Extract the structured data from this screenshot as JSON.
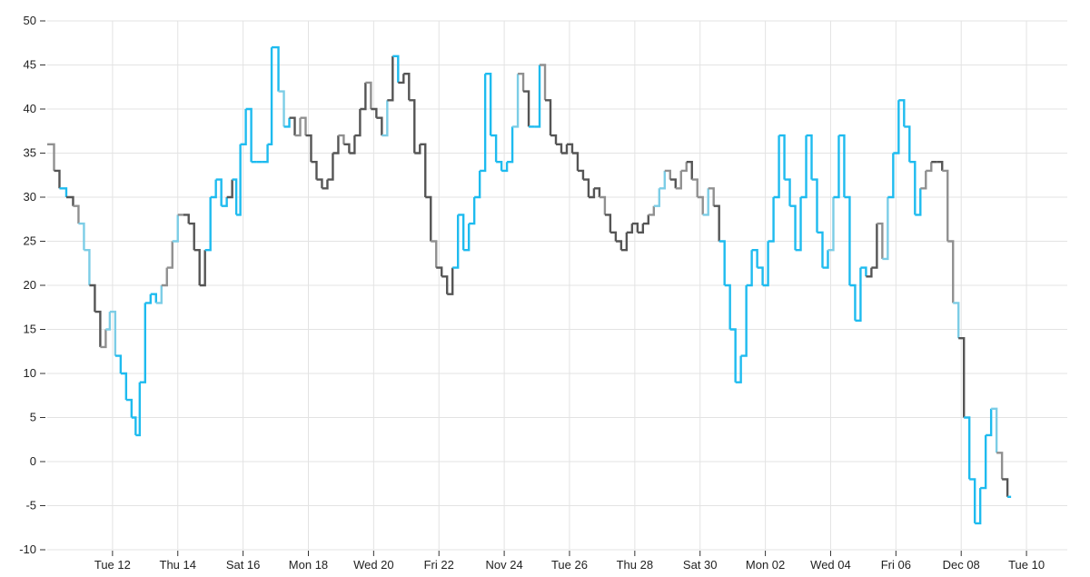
{
  "chart_data": {
    "type": "line",
    "title": "",
    "xlabel": "",
    "ylabel": "",
    "ylim": [
      -10,
      50
    ],
    "grid": true,
    "legend": "none",
    "y_ticks": [
      -10,
      -5,
      0,
      5,
      10,
      15,
      20,
      25,
      30,
      35,
      40,
      45,
      50
    ],
    "x_ticks": [
      {
        "value": "2024-11-12",
        "label": "Tue 12"
      },
      {
        "value": "2024-11-14",
        "label": "Thu 14"
      },
      {
        "value": "2024-11-16",
        "label": "Sat 16"
      },
      {
        "value": "2024-11-18",
        "label": "Mon 18"
      },
      {
        "value": "2024-11-20",
        "label": "Wed 20"
      },
      {
        "value": "2024-11-22",
        "label": "Fri 22"
      },
      {
        "value": "2024-11-24",
        "label": "Nov 24"
      },
      {
        "value": "2024-11-26",
        "label": "Tue 26"
      },
      {
        "value": "2024-11-28",
        "label": "Thu 28"
      },
      {
        "value": "2024-11-30",
        "label": "Sat 30"
      },
      {
        "value": "2024-12-02",
        "label": "Mon 02"
      },
      {
        "value": "2024-12-04",
        "label": "Wed 04"
      },
      {
        "value": "2024-12-06",
        "label": "Fri 06"
      },
      {
        "value": "2024-12-08",
        "label": "Dec 08"
      },
      {
        "value": "2024-12-10",
        "label": "Tue 10"
      }
    ],
    "x_range": [
      "2024-11-10T00:00",
      "2024-12-11T06:00"
    ],
    "colors": {
      "bright": "#1ebbef",
      "light": "#7ccde6",
      "gray": "#909090",
      "dark": "#555555",
      "grid": "#e3e3e3",
      "axis": "#333333"
    },
    "series": [
      {
        "points": [
          [
            "2024-11-10T00:00",
            36,
            "gray"
          ],
          [
            "2024-11-10T05:00",
            33,
            "dark"
          ],
          [
            "2024-11-10T09:00",
            31,
            "bright"
          ],
          [
            "2024-11-10T14:00",
            30,
            "dark"
          ],
          [
            "2024-11-10T19:00",
            29,
            "gray"
          ],
          [
            "2024-11-10T23:00",
            27,
            "light"
          ],
          [
            "2024-11-11T03:00",
            24,
            "light"
          ],
          [
            "2024-11-11T07:00",
            20,
            "dark"
          ],
          [
            "2024-11-11T11:00",
            17,
            "dark"
          ],
          [
            "2024-11-11T15:00",
            13,
            "gray"
          ],
          [
            "2024-11-11T19:00",
            15,
            "light"
          ],
          [
            "2024-11-11T22:00",
            17,
            "light"
          ],
          [
            "2024-11-12T02:00",
            12,
            "bright"
          ],
          [
            "2024-11-12T06:00",
            10,
            "bright"
          ],
          [
            "2024-11-12T10:00",
            7,
            "bright"
          ],
          [
            "2024-11-12T14:00",
            5,
            "bright"
          ],
          [
            "2024-11-12T17:00",
            3,
            "bright"
          ],
          [
            "2024-11-12T20:00",
            9,
            "bright"
          ],
          [
            "2024-11-13T00:00",
            18,
            "bright"
          ],
          [
            "2024-11-13T04:00",
            19,
            "bright"
          ],
          [
            "2024-11-13T08:00",
            18,
            "light"
          ],
          [
            "2024-11-13T12:00",
            20,
            "gray"
          ],
          [
            "2024-11-13T16:00",
            22,
            "gray"
          ],
          [
            "2024-11-13T20:00",
            25,
            "light"
          ],
          [
            "2024-11-14T00:00",
            28,
            "gray"
          ],
          [
            "2024-11-14T04:00",
            28,
            "dark"
          ],
          [
            "2024-11-14T08:00",
            27,
            "dark"
          ],
          [
            "2024-11-14T12:00",
            24,
            "dark"
          ],
          [
            "2024-11-14T16:00",
            20,
            "dark"
          ],
          [
            "2024-11-14T20:00",
            24,
            "bright"
          ],
          [
            "2024-11-15T00:00",
            30,
            "bright"
          ],
          [
            "2024-11-15T04:00",
            32,
            "bright"
          ],
          [
            "2024-11-15T08:00",
            29,
            "bright"
          ],
          [
            "2024-11-15T12:00",
            30,
            "dark"
          ],
          [
            "2024-11-15T16:00",
            32,
            "bright"
          ],
          [
            "2024-11-15T19:00",
            28,
            "bright"
          ],
          [
            "2024-11-15T22:00",
            36,
            "bright"
          ],
          [
            "2024-11-16T02:00",
            40,
            "bright"
          ],
          [
            "2024-11-16T06:00",
            34,
            "bright"
          ],
          [
            "2024-11-16T10:00",
            34,
            "bright"
          ],
          [
            "2024-11-16T14:00",
            34,
            "bright"
          ],
          [
            "2024-11-16T18:00",
            36,
            "bright"
          ],
          [
            "2024-11-16T21:00",
            47,
            "bright"
          ],
          [
            "2024-11-17T02:00",
            42,
            "light"
          ],
          [
            "2024-11-17T06:00",
            38,
            "bright"
          ],
          [
            "2024-11-17T10:00",
            39,
            "dark"
          ],
          [
            "2024-11-17T14:00",
            37,
            "gray"
          ],
          [
            "2024-11-17T18:00",
            39,
            "gray"
          ],
          [
            "2024-11-17T22:00",
            37,
            "dark"
          ],
          [
            "2024-11-18T02:00",
            34,
            "dark"
          ],
          [
            "2024-11-18T06:00",
            32,
            "dark"
          ],
          [
            "2024-11-18T10:00",
            31,
            "dark"
          ],
          [
            "2024-11-18T14:00",
            32,
            "dark"
          ],
          [
            "2024-11-18T18:00",
            35,
            "dark"
          ],
          [
            "2024-11-18T22:00",
            37,
            "gray"
          ],
          [
            "2024-11-19T02:00",
            36,
            "dark"
          ],
          [
            "2024-11-19T06:00",
            35,
            "dark"
          ],
          [
            "2024-11-19T10:00",
            37,
            "dark"
          ],
          [
            "2024-11-19T14:00",
            40,
            "dark"
          ],
          [
            "2024-11-19T18:00",
            43,
            "gray"
          ],
          [
            "2024-11-19T22:00",
            40,
            "dark"
          ],
          [
            "2024-11-20T02:00",
            39,
            "dark"
          ],
          [
            "2024-11-20T06:00",
            37,
            "light"
          ],
          [
            "2024-11-20T10:00",
            41,
            "dark"
          ],
          [
            "2024-11-20T14:00",
            46,
            "bright"
          ],
          [
            "2024-11-20T18:00",
            43,
            "dark"
          ],
          [
            "2024-11-20T22:00",
            44,
            "dark"
          ],
          [
            "2024-11-21T02:00",
            41,
            "dark"
          ],
          [
            "2024-11-21T06:00",
            35,
            "dark"
          ],
          [
            "2024-11-21T10:00",
            36,
            "dark"
          ],
          [
            "2024-11-21T14:00",
            30,
            "dark"
          ],
          [
            "2024-11-21T18:00",
            25,
            "gray"
          ],
          [
            "2024-11-21T22:00",
            22,
            "dark"
          ],
          [
            "2024-11-22T02:00",
            21,
            "dark"
          ],
          [
            "2024-11-22T06:00",
            19,
            "dark"
          ],
          [
            "2024-11-22T10:00",
            22,
            "bright"
          ],
          [
            "2024-11-22T14:00",
            28,
            "bright"
          ],
          [
            "2024-11-22T18:00",
            24,
            "bright"
          ],
          [
            "2024-11-22T22:00",
            27,
            "bright"
          ],
          [
            "2024-11-23T02:00",
            30,
            "bright"
          ],
          [
            "2024-11-23T06:00",
            33,
            "bright"
          ],
          [
            "2024-11-23T10:00",
            44,
            "bright"
          ],
          [
            "2024-11-23T14:00",
            37,
            "bright"
          ],
          [
            "2024-11-23T18:00",
            34,
            "bright"
          ],
          [
            "2024-11-23T22:00",
            33,
            "bright"
          ],
          [
            "2024-11-24T02:00",
            34,
            "bright"
          ],
          [
            "2024-11-24T06:00",
            38,
            "light"
          ],
          [
            "2024-11-24T10:00",
            44,
            "gray"
          ],
          [
            "2024-11-24T14:00",
            42,
            "dark"
          ],
          [
            "2024-11-24T18:00",
            38,
            "bright"
          ],
          [
            "2024-11-24T22:00",
            38,
            "bright"
          ],
          [
            "2024-11-25T02:00",
            45,
            "gray"
          ],
          [
            "2024-11-25T06:00",
            41,
            "dark"
          ],
          [
            "2024-11-25T10:00",
            37,
            "dark"
          ],
          [
            "2024-11-25T14:00",
            36,
            "dark"
          ],
          [
            "2024-11-25T18:00",
            35,
            "dark"
          ],
          [
            "2024-11-25T22:00",
            36,
            "dark"
          ],
          [
            "2024-11-26T02:00",
            35,
            "dark"
          ],
          [
            "2024-11-26T06:00",
            33,
            "dark"
          ],
          [
            "2024-11-26T10:00",
            32,
            "dark"
          ],
          [
            "2024-11-26T14:00",
            30,
            "dark"
          ],
          [
            "2024-11-26T18:00",
            31,
            "dark"
          ],
          [
            "2024-11-26T22:00",
            30,
            "gray"
          ],
          [
            "2024-11-27T02:00",
            28,
            "dark"
          ],
          [
            "2024-11-27T06:00",
            26,
            "dark"
          ],
          [
            "2024-11-27T10:00",
            25,
            "dark"
          ],
          [
            "2024-11-27T14:00",
            24,
            "dark"
          ],
          [
            "2024-11-27T18:00",
            26,
            "dark"
          ],
          [
            "2024-11-27T22:00",
            27,
            "dark"
          ],
          [
            "2024-11-28T02:00",
            26,
            "dark"
          ],
          [
            "2024-11-28T06:00",
            27,
            "dark"
          ],
          [
            "2024-11-28T10:00",
            28,
            "gray"
          ],
          [
            "2024-11-28T14:00",
            29,
            "light"
          ],
          [
            "2024-11-28T18:00",
            31,
            "light"
          ],
          [
            "2024-11-28T22:00",
            33,
            "gray"
          ],
          [
            "2024-11-29T02:00",
            32,
            "dark"
          ],
          [
            "2024-11-29T06:00",
            31,
            "gray"
          ],
          [
            "2024-11-29T10:00",
            33,
            "gray"
          ],
          [
            "2024-11-29T14:00",
            34,
            "dark"
          ],
          [
            "2024-11-29T18:00",
            32,
            "gray"
          ],
          [
            "2024-11-29T22:00",
            30,
            "gray"
          ],
          [
            "2024-11-30T02:00",
            28,
            "light"
          ],
          [
            "2024-11-30T06:00",
            31,
            "gray"
          ],
          [
            "2024-11-30T10:00",
            29,
            "dark"
          ],
          [
            "2024-11-30T14:00",
            25,
            "bright"
          ],
          [
            "2024-11-30T18:00",
            20,
            "bright"
          ],
          [
            "2024-11-30T22:00",
            15,
            "bright"
          ],
          [
            "2024-12-01T02:00",
            9,
            "bright"
          ],
          [
            "2024-12-01T06:00",
            12,
            "bright"
          ],
          [
            "2024-12-01T10:00",
            20,
            "bright"
          ],
          [
            "2024-12-01T14:00",
            24,
            "bright"
          ],
          [
            "2024-12-01T18:00",
            22,
            "bright"
          ],
          [
            "2024-12-01T22:00",
            20,
            "bright"
          ],
          [
            "2024-12-02T02:00",
            25,
            "bright"
          ],
          [
            "2024-12-02T06:00",
            30,
            "bright"
          ],
          [
            "2024-12-02T10:00",
            37,
            "bright"
          ],
          [
            "2024-12-02T14:00",
            32,
            "bright"
          ],
          [
            "2024-12-02T18:00",
            29,
            "bright"
          ],
          [
            "2024-12-02T22:00",
            24,
            "bright"
          ],
          [
            "2024-12-03T02:00",
            30,
            "bright"
          ],
          [
            "2024-12-03T06:00",
            37,
            "bright"
          ],
          [
            "2024-12-03T10:00",
            32,
            "bright"
          ],
          [
            "2024-12-03T14:00",
            26,
            "bright"
          ],
          [
            "2024-12-03T18:00",
            22,
            "bright"
          ],
          [
            "2024-12-03T22:00",
            24,
            "light"
          ],
          [
            "2024-12-04T02:00",
            30,
            "bright"
          ],
          [
            "2024-12-04T06:00",
            37,
            "bright"
          ],
          [
            "2024-12-04T10:00",
            30,
            "bright"
          ],
          [
            "2024-12-04T14:00",
            20,
            "bright"
          ],
          [
            "2024-12-04T18:00",
            16,
            "bright"
          ],
          [
            "2024-12-04T22:00",
            22,
            "bright"
          ],
          [
            "2024-12-05T02:00",
            21,
            "dark"
          ],
          [
            "2024-12-05T06:00",
            22,
            "dark"
          ],
          [
            "2024-12-05T10:00",
            27,
            "gray"
          ],
          [
            "2024-12-05T14:00",
            23,
            "light"
          ],
          [
            "2024-12-05T18:00",
            30,
            "bright"
          ],
          [
            "2024-12-05T22:00",
            35,
            "bright"
          ],
          [
            "2024-12-06T02:00",
            41,
            "bright"
          ],
          [
            "2024-12-06T06:00",
            38,
            "bright"
          ],
          [
            "2024-12-06T10:00",
            34,
            "bright"
          ],
          [
            "2024-12-06T14:00",
            28,
            "bright"
          ],
          [
            "2024-12-06T18:00",
            31,
            "gray"
          ],
          [
            "2024-12-06T22:00",
            33,
            "gray"
          ],
          [
            "2024-12-07T02:00",
            34,
            "dark"
          ],
          [
            "2024-12-07T06:00",
            34,
            "dark"
          ],
          [
            "2024-12-07T10:00",
            33,
            "gray"
          ],
          [
            "2024-12-07T14:00",
            25,
            "gray"
          ],
          [
            "2024-12-07T18:00",
            18,
            "light"
          ],
          [
            "2024-12-07T22:00",
            14,
            "dark"
          ],
          [
            "2024-12-08T02:00",
            5,
            "bright"
          ],
          [
            "2024-12-08T06:00",
            -2,
            "bright"
          ],
          [
            "2024-12-08T10:00",
            -7,
            "bright"
          ],
          [
            "2024-12-08T14:00",
            -3,
            "bright"
          ],
          [
            "2024-12-08T18:00",
            3,
            "bright"
          ],
          [
            "2024-12-08T22:00",
            6,
            "light"
          ],
          [
            "2024-12-09T02:00",
            1,
            "gray"
          ],
          [
            "2024-12-09T06:00",
            -2,
            "dark"
          ],
          [
            "2024-12-09T10:00",
            -4,
            "bright"
          ]
        ]
      }
    ]
  }
}
